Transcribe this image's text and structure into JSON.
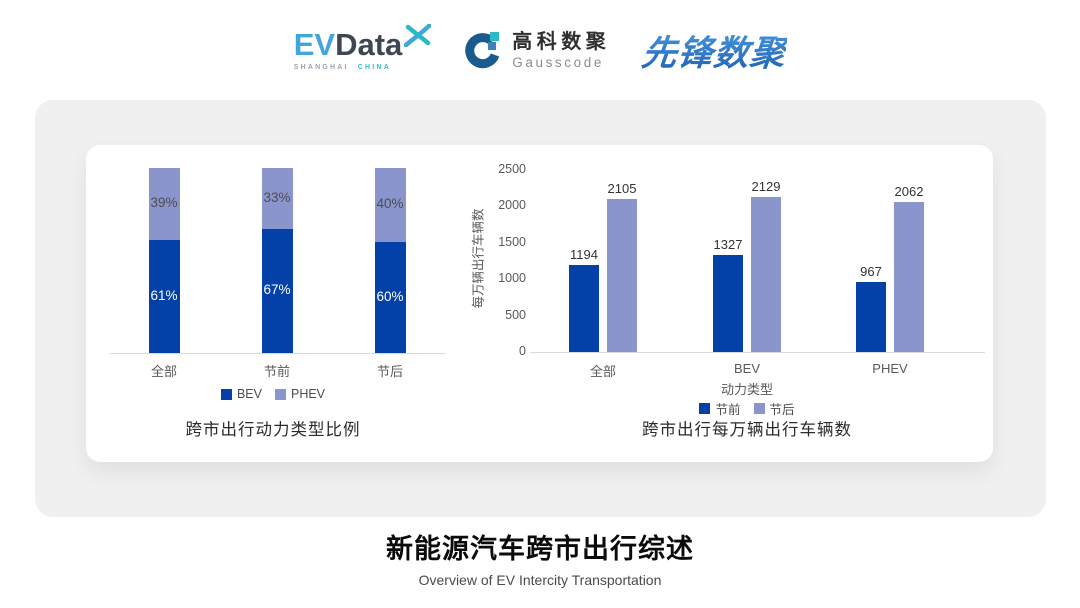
{
  "header": {
    "evdata": {
      "part_ev": "EV",
      "part_data": "Data",
      "tagline_left": "SHANGHAI",
      "tagline_right": "CHINA",
      "colors": {
        "ev": "#41A6DA",
        "data": "#3D4753",
        "tagline_left": "#9AA3AB",
        "tagline_right": "#3BB7C9"
      }
    },
    "gausscode": {
      "cn": "高科数聚",
      "en": "Gausscode",
      "colors": {
        "mark_dark": "#1A5B8F",
        "mark_teal": "#2BB8C9",
        "mark_mid": "#3E82B8",
        "cn": "#2F2F2F",
        "en": "#8C8C8C"
      }
    },
    "xianfeng": {
      "text": "先锋数聚",
      "color": "#2E78CB"
    }
  },
  "chart_data": [
    {
      "type": "bar",
      "variant": "stacked-100",
      "title": "跨市出行动力类型比例",
      "categories": [
        "全部",
        "节前",
        "节后"
      ],
      "series": [
        {
          "name": "BEV",
          "color": "#0341A8",
          "values": [
            61,
            67,
            60
          ]
        },
        {
          "name": "PHEV",
          "color": "#8B95CD",
          "values": [
            39,
            33,
            40
          ]
        }
      ],
      "value_format": "percent",
      "legend_position": "bottom",
      "grid": false
    },
    {
      "type": "bar",
      "variant": "grouped",
      "title": "跨市出行每万辆出行车辆数",
      "categories": [
        "全部",
        "BEV",
        "PHEV"
      ],
      "xlabel": "动力类型",
      "ylabel": "每万辆出行车辆数",
      "ylim": [
        0,
        2500
      ],
      "yticks": [
        0,
        500,
        1000,
        1500,
        2000,
        2500
      ],
      "series": [
        {
          "name": "节前",
          "color": "#0341A8",
          "values": [
            1194,
            1327,
            967
          ]
        },
        {
          "name": "节后",
          "color": "#8B95CD",
          "values": [
            2105,
            2129,
            2062
          ]
        }
      ],
      "legend_position": "bottom",
      "grid": false
    }
  ],
  "footer": {
    "title": "新能源汽车跨市出行综述",
    "subtitle": "Overview of EV Intercity Transportation"
  },
  "palette": {
    "dark_blue": "#0341A8",
    "light_blue": "#8B95CD",
    "axis_gray": "#D9D9D9",
    "label_gray": "#595959",
    "card_gray": "#F0F0F1"
  }
}
